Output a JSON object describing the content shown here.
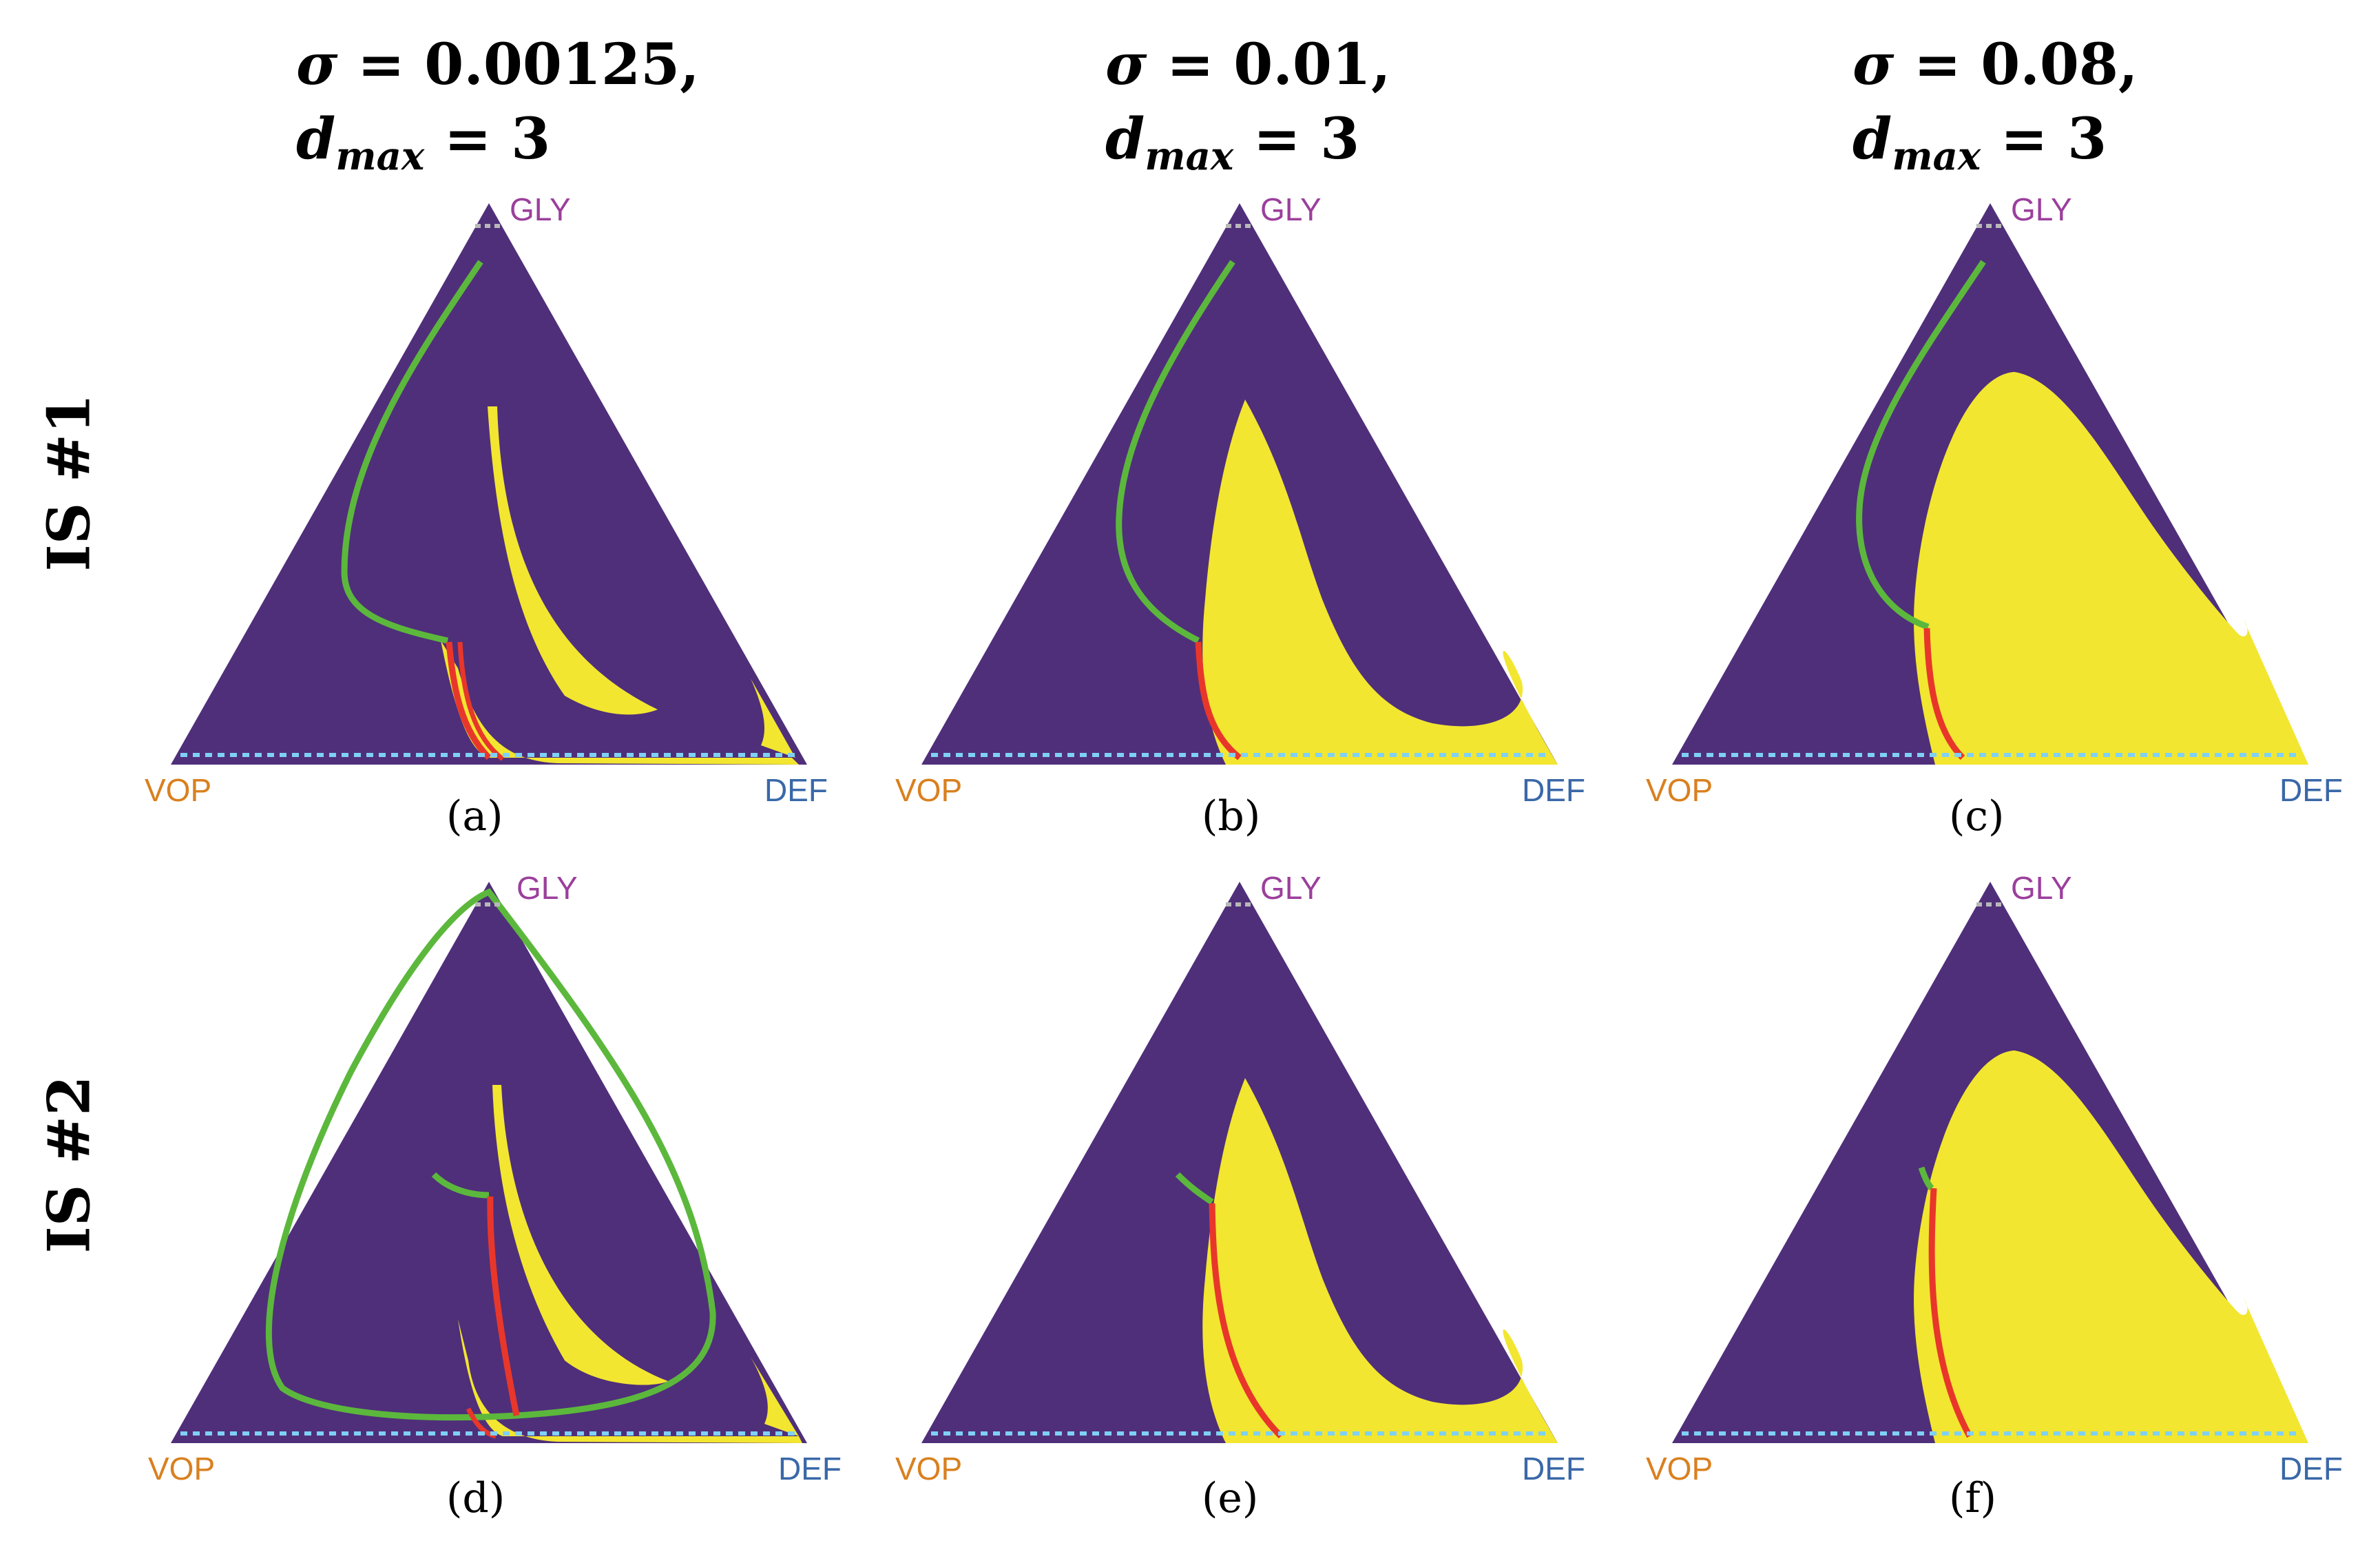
{
  "columns": [
    {
      "sigma_symbol": "σ",
      "sigma_value": " = 0.00125,",
      "d_symbol": "d",
      "d_sub": "max",
      "d_value": " = 3"
    },
    {
      "sigma_symbol": "σ",
      "sigma_value": " = 0.01,",
      "d_symbol": "d",
      "d_sub": "max",
      "d_value": " = 3"
    },
    {
      "sigma_symbol": "σ",
      "sigma_value": " = 0.08,",
      "d_symbol": "d",
      "d_sub": "max",
      "d_value": " = 3"
    }
  ],
  "rows": [
    {
      "label": "IS #1"
    },
    {
      "label": "IS #2"
    }
  ],
  "vertex_labels": {
    "top": "GLY",
    "left": "VOP",
    "right": "DEF"
  },
  "colors": {
    "background_region": "#4f2f7a",
    "basin_region": "#f2e630",
    "green_trajectory": "#5cb83c",
    "red_trajectory": "#e8372a",
    "top_dotted": "#b8b8b8",
    "bottom_dotted": "#7fd0f5",
    "label_gly": "#9b3f9c",
    "label_vop": "#d9801f",
    "label_def": "#3a68a8"
  },
  "panels": [
    {
      "caption": "(a)"
    },
    {
      "caption": "(b)"
    },
    {
      "caption": "(c)"
    },
    {
      "caption": "(d)"
    },
    {
      "caption": "(e)"
    },
    {
      "caption": "(f)"
    }
  ]
}
